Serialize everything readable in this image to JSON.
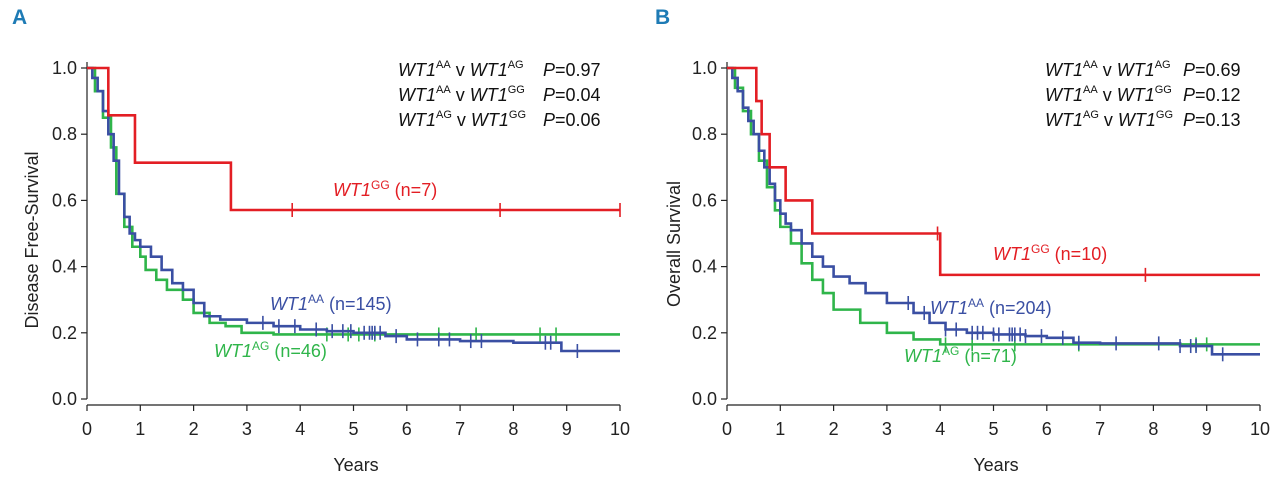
{
  "colors": {
    "red": "#e31e24",
    "blue": "#3a4fa3",
    "green": "#2fb54a",
    "axis": "#222222",
    "letter": "#1e7bb5"
  },
  "chart_data": [
    {
      "panel": "A",
      "type": "line",
      "step": true,
      "xlabel": "Years",
      "ylabel": "Disease Free-Survival",
      "xlim": [
        0,
        10
      ],
      "ylim": [
        0,
        1
      ],
      "xticks": [
        "0",
        "1",
        "2",
        "3",
        "4",
        "5",
        "6",
        "7",
        "8",
        "9",
        "10"
      ],
      "yticks": [
        "0.0",
        "0.2",
        "0.4",
        "0.6",
        "0.8",
        "1.0"
      ],
      "stats": [
        {
          "a": "WT1",
          "a_sup": "AA",
          "v": "v",
          "b": "WT1",
          "b_sup": "AG",
          "p": "P",
          "pval": "=0.97"
        },
        {
          "a": "WT1",
          "a_sup": "AA",
          "v": "v",
          "b": "WT1",
          "b_sup": "GG",
          "p": "P",
          "pval": "=0.04"
        },
        {
          "a": "WT1",
          "a_sup": "AG",
          "v": "v",
          "b": "WT1",
          "b_sup": "GG",
          "p": "P",
          "pval": "=0.06"
        }
      ],
      "series": [
        {
          "name": "WT1",
          "sup": "GG",
          "n": "(n=7)",
          "color": "red",
          "steps": [
            [
              0,
              1.0
            ],
            [
              0.4,
              0.857
            ],
            [
              0.9,
              0.714
            ],
            [
              2.7,
              0.571
            ],
            [
              10,
              0.571
            ]
          ],
          "censors": [
            3.85,
            7.75,
            10.0
          ]
        },
        {
          "name": "WT1",
          "sup": "AA",
          "n": "(n=145)",
          "color": "blue",
          "steps": [
            [
              0,
              1.0
            ],
            [
              0.1,
              0.97
            ],
            [
              0.2,
              0.93
            ],
            [
              0.3,
              0.87
            ],
            [
              0.4,
              0.8
            ],
            [
              0.5,
              0.72
            ],
            [
              0.6,
              0.62
            ],
            [
              0.7,
              0.55
            ],
            [
              0.8,
              0.5
            ],
            [
              0.9,
              0.48
            ],
            [
              1.0,
              0.46
            ],
            [
              1.2,
              0.43
            ],
            [
              1.4,
              0.39
            ],
            [
              1.6,
              0.35
            ],
            [
              1.8,
              0.33
            ],
            [
              2.0,
              0.29
            ],
            [
              2.2,
              0.25
            ],
            [
              2.5,
              0.24
            ],
            [
              3.0,
              0.23
            ],
            [
              3.5,
              0.22
            ],
            [
              4.0,
              0.21
            ],
            [
              4.5,
              0.205
            ],
            [
              5.0,
              0.2
            ],
            [
              5.6,
              0.19
            ],
            [
              6.0,
              0.18
            ],
            [
              7.0,
              0.175
            ],
            [
              8.0,
              0.17
            ],
            [
              8.9,
              0.145
            ],
            [
              10,
              0.145
            ]
          ],
          "censors": [
            3.3,
            3.6,
            3.9,
            4.3,
            4.6,
            4.8,
            4.95,
            5.2,
            5.3,
            5.35,
            5.4,
            5.5,
            5.8,
            6.2,
            6.6,
            6.8,
            7.2,
            7.4,
            8.6,
            8.7,
            9.2
          ]
        },
        {
          "name": "WT1",
          "sup": "AG",
          "n": "(n=46)",
          "color": "green",
          "steps": [
            [
              0,
              1.0
            ],
            [
              0.15,
              0.93
            ],
            [
              0.3,
              0.85
            ],
            [
              0.45,
              0.76
            ],
            [
              0.55,
              0.62
            ],
            [
              0.7,
              0.52
            ],
            [
              0.85,
              0.46
            ],
            [
              1.0,
              0.43
            ],
            [
              1.1,
              0.39
            ],
            [
              1.3,
              0.36
            ],
            [
              1.5,
              0.33
            ],
            [
              1.8,
              0.3
            ],
            [
              2.0,
              0.26
            ],
            [
              2.3,
              0.23
            ],
            [
              2.6,
              0.22
            ],
            [
              2.9,
              0.2
            ],
            [
              3.5,
              0.195
            ],
            [
              10,
              0.195
            ]
          ],
          "censors": [
            4.5,
            4.9,
            5.1,
            5.4,
            6.6,
            7.3,
            8.5,
            8.8
          ]
        }
      ]
    },
    {
      "panel": "B",
      "type": "line",
      "step": true,
      "xlabel": "Years",
      "ylabel": "Overall Survival",
      "xlim": [
        0,
        10
      ],
      "ylim": [
        0,
        1
      ],
      "xticks": [
        "0",
        "1",
        "2",
        "3",
        "4",
        "5",
        "6",
        "7",
        "8",
        "9",
        "10"
      ],
      "yticks": [
        "0.0",
        "0.2",
        "0.4",
        "0.6",
        "0.8",
        "1.0"
      ],
      "stats": [
        {
          "a": "WT1",
          "a_sup": "AA",
          "v": "v",
          "b": "WT1",
          "b_sup": "AG",
          "p": "P",
          "pval": "=0.69"
        },
        {
          "a": "WT1",
          "a_sup": "AA",
          "v": "v",
          "b": "WT1",
          "b_sup": "GG",
          "p": "P",
          "pval": "=0.12"
        },
        {
          "a": "WT1",
          "a_sup": "AG",
          "v": "v",
          "b": "WT1",
          "b_sup": "GG",
          "p": "P",
          "pval": "=0.13"
        }
      ],
      "series": [
        {
          "name": "WT1",
          "sup": "GG",
          "n": "(n=10)",
          "color": "red",
          "steps": [
            [
              0,
              1.0
            ],
            [
              0.55,
              0.9
            ],
            [
              0.65,
              0.8
            ],
            [
              0.8,
              0.7
            ],
            [
              1.1,
              0.6
            ],
            [
              1.6,
              0.5
            ],
            [
              4.0,
              0.375
            ],
            [
              10,
              0.375
            ]
          ],
          "censors": [
            3.95,
            7.85
          ]
        },
        {
          "name": "WT1",
          "sup": "AA",
          "n": "(n=204)",
          "color": "blue",
          "steps": [
            [
              0,
              1.0
            ],
            [
              0.1,
              0.97
            ],
            [
              0.2,
              0.93
            ],
            [
              0.3,
              0.88
            ],
            [
              0.4,
              0.84
            ],
            [
              0.5,
              0.8
            ],
            [
              0.6,
              0.75
            ],
            [
              0.7,
              0.7
            ],
            [
              0.8,
              0.65
            ],
            [
              0.9,
              0.6
            ],
            [
              1.0,
              0.56
            ],
            [
              1.1,
              0.53
            ],
            [
              1.2,
              0.51
            ],
            [
              1.4,
              0.47
            ],
            [
              1.6,
              0.43
            ],
            [
              1.8,
              0.4
            ],
            [
              2.0,
              0.37
            ],
            [
              2.3,
              0.35
            ],
            [
              2.6,
              0.32
            ],
            [
              3.0,
              0.29
            ],
            [
              3.5,
              0.26
            ],
            [
              3.8,
              0.23
            ],
            [
              4.1,
              0.21
            ],
            [
              4.5,
              0.2
            ],
            [
              5.0,
              0.195
            ],
            [
              5.6,
              0.19
            ],
            [
              6.0,
              0.185
            ],
            [
              6.5,
              0.17
            ],
            [
              7.0,
              0.168
            ],
            [
              8.5,
              0.16
            ],
            [
              9.1,
              0.135
            ],
            [
              10,
              0.135
            ]
          ],
          "censors": [
            3.4,
            3.7,
            4.1,
            4.3,
            4.6,
            4.7,
            4.8,
            5.0,
            5.1,
            5.3,
            5.35,
            5.4,
            5.5,
            5.6,
            5.9,
            6.3,
            6.6,
            7.3,
            8.1,
            8.5,
            8.7,
            8.8,
            9.3
          ]
        },
        {
          "name": "WT1",
          "sup": "AG",
          "n": "(n=71)",
          "color": "green",
          "steps": [
            [
              0,
              1.0
            ],
            [
              0.15,
              0.94
            ],
            [
              0.3,
              0.87
            ],
            [
              0.45,
              0.8
            ],
            [
              0.6,
              0.72
            ],
            [
              0.75,
              0.64
            ],
            [
              0.9,
              0.57
            ],
            [
              1.0,
              0.52
            ],
            [
              1.2,
              0.47
            ],
            [
              1.4,
              0.41
            ],
            [
              1.6,
              0.36
            ],
            [
              1.8,
              0.32
            ],
            [
              2.0,
              0.27
            ],
            [
              2.5,
              0.23
            ],
            [
              3.0,
              0.2
            ],
            [
              3.5,
              0.18
            ],
            [
              4.0,
              0.165
            ],
            [
              10,
              0.165
            ]
          ],
          "censors": [
            4.1,
            4.6,
            5.4,
            6.6,
            8.8,
            9.0
          ]
        }
      ]
    }
  ]
}
